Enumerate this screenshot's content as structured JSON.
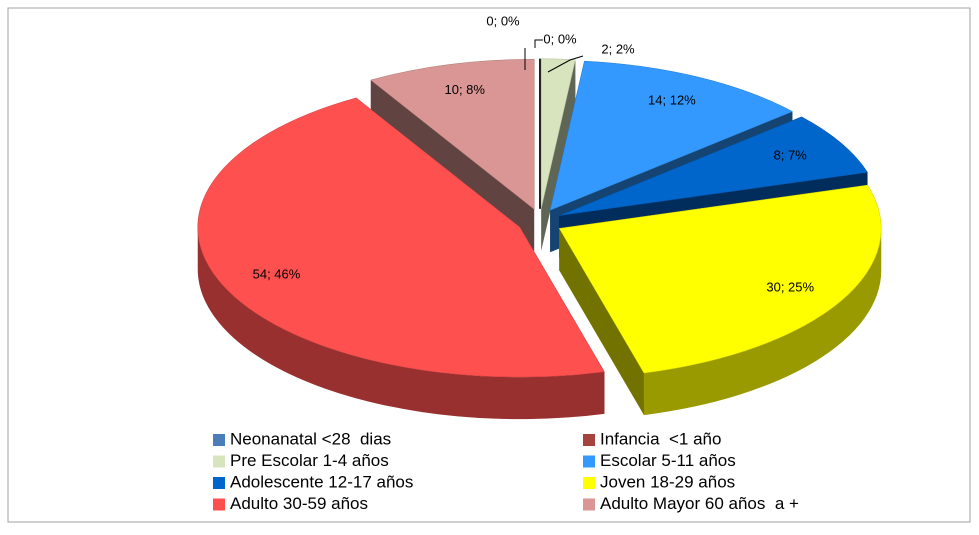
{
  "chart_data": {
    "type": "pie3d",
    "categories": [
      "Neonanatal <28  dias",
      "Infancia  <1 año",
      "Pre Escolar 1-4 años",
      "Escolar 5-11 años",
      "Adolescente 12-17 años",
      "Joven 18-29 años",
      "Adulto 30-59 años",
      "Adulto Mayor 60 años  a +"
    ],
    "values": [
      0,
      0,
      2,
      14,
      8,
      30,
      54,
      10
    ],
    "value_labels": [
      "0; 0%",
      "0; 0%",
      "2; 2%",
      "14; 12%",
      "8; 7%",
      "30; 25%",
      "54; 46%",
      "10; 8%"
    ],
    "colors": [
      "#4a7ebb",
      "#a5443f",
      "#d7e4bd",
      "#3399ff",
      "#0066cc",
      "#ffff00",
      "#ff5050",
      "#d99694"
    ]
  }
}
